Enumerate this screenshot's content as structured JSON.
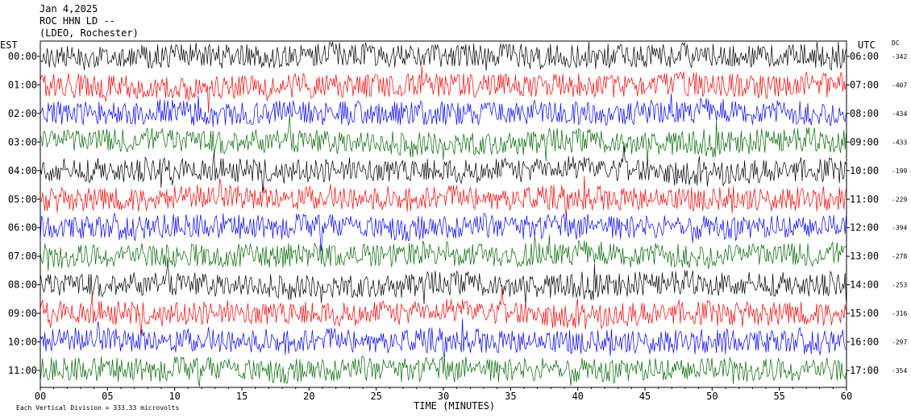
{
  "header": {
    "date": "Jan 4,2025",
    "station": "ROC HHN LD --",
    "network": "(LDEO, Rochester)"
  },
  "left_axis_label": "EST",
  "right_axis_label": "UTC",
  "dc_label": "DC",
  "footer": "Each Vertical Division = 333.33 microvolts",
  "colors": {
    "series": [
      "#000000",
      "#ff0000",
      "#0000ff",
      "#006600"
    ]
  },
  "chart_data": {
    "type": "line",
    "title": "",
    "xlabel": "TIME (MINUTES)",
    "xlim": [
      0,
      60
    ],
    "x_ticks": [
      "00",
      "05",
      "10",
      "15",
      "20",
      "25",
      "30",
      "35",
      "40",
      "45",
      "50",
      "55",
      "60"
    ],
    "rows": [
      {
        "est": "00:00",
        "utc": "06:00",
        "dc": "-342"
      },
      {
        "est": "01:00",
        "utc": "07:00",
        "dc": "-407"
      },
      {
        "est": "02:00",
        "utc": "08:00",
        "dc": "-434"
      },
      {
        "est": "03:00",
        "utc": "09:00",
        "dc": "-433"
      },
      {
        "est": "04:00",
        "utc": "10:00",
        "dc": "-199"
      },
      {
        "est": "05:00",
        "utc": "11:00",
        "dc": "-229"
      },
      {
        "est": "06:00",
        "utc": "12:00",
        "dc": "-394"
      },
      {
        "est": "07:00",
        "utc": "13:00",
        "dc": "-278"
      },
      {
        "est": "08:00",
        "utc": "14:00",
        "dc": "-253"
      },
      {
        "est": "09:00",
        "utc": "15:00",
        "dc": "-316"
      },
      {
        "est": "10:00",
        "utc": "16:00",
        "dc": "-297"
      },
      {
        "est": "11:00",
        "utc": "17:00",
        "dc": "-354"
      }
    ]
  }
}
